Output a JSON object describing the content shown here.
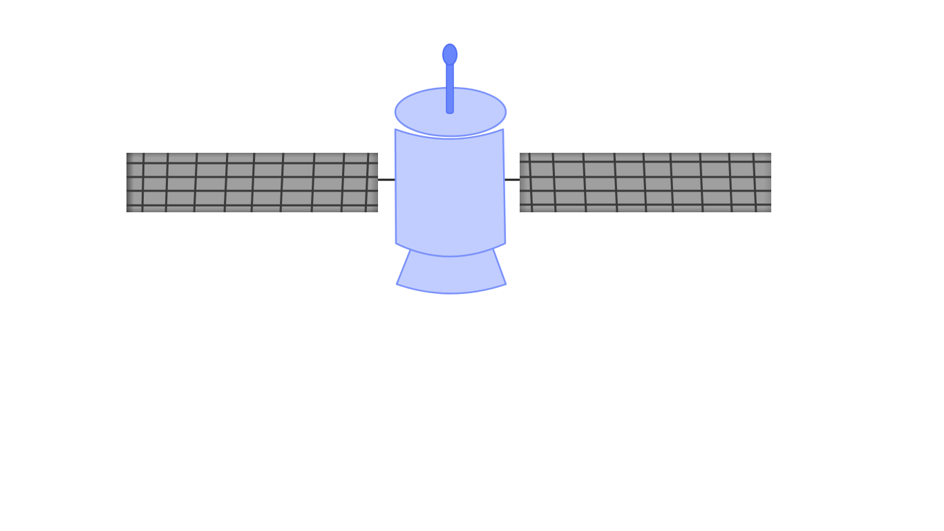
{
  "scene": {
    "subject": "satellite-illustration",
    "background_color": "#ffffff",
    "body_fill_color": "#c1cdfe",
    "body_stroke_color": "#7b92fb",
    "antenna_color": "#6a86fb",
    "panel_fill_color": "#9f9f9f",
    "panel_grid_color": "#3a3a3a",
    "strut_color": "#1f1f1f"
  }
}
